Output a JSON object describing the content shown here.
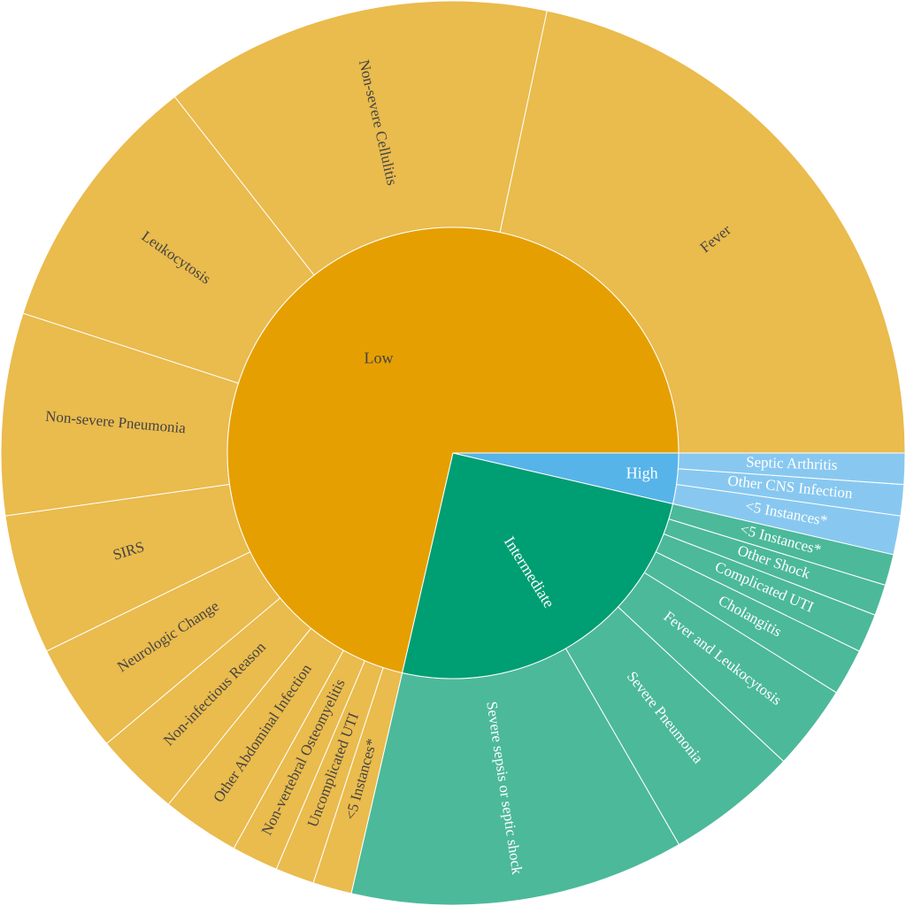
{
  "chart_data": {
    "type": "sunburst",
    "nodes": [
      {
        "name": "Low",
        "color": "#e69f00",
        "child_color": "#eabb4d",
        "text_color": "#444444",
        "children": [
          {
            "name": "Fever",
            "value": 78
          },
          {
            "name": "Non-severe Cellulitis",
            "value": 50
          },
          {
            "name": "Leukocytosis",
            "value": 34
          },
          {
            "name": "Non-severe Pneumonia",
            "value": 26
          },
          {
            "name": "SIRS",
            "value": 18
          },
          {
            "name": "Neurologic Change",
            "value": 14
          },
          {
            "name": "Non-infectious Reason",
            "value": 11
          },
          {
            "name": "Other Abdominal Infection",
            "value": 10
          },
          {
            "name": "Non-vertebral Osteomyelitis",
            "value": 6
          },
          {
            "name": "Uncomplicated UTI",
            "value": 5
          },
          {
            "name": "<5 Instances*",
            "value": 5
          }
        ]
      },
      {
        "name": "Intermediate",
        "color": "#009e73",
        "child_color": "#4cb99a",
        "text_color": "#ffffff",
        "children": [
          {
            "name": "Severe sepsis or septic shock",
            "value": 43
          },
          {
            "name": "Severe Pneumonia",
            "value": 17
          },
          {
            "name": "Fever and Leukocytosis",
            "value": 11
          },
          {
            "name": "Cholangitis",
            "value": 6
          },
          {
            "name": "Complicated UTI",
            "value": 5
          },
          {
            "name": "Other Shock",
            "value": 4
          },
          {
            "name": "<5 Instances*",
            "value": 4
          }
        ]
      },
      {
        "name": "High",
        "color": "#56b4e9",
        "child_color": "#88c8f0",
        "text_color": "#ffffff",
        "children": [
          {
            "name": "<5 Instances*",
            "value": 5
          },
          {
            "name": "Other CNS Infection",
            "value": 4
          },
          {
            "name": "Septic Arthritis",
            "value": 4
          }
        ]
      }
    ]
  }
}
